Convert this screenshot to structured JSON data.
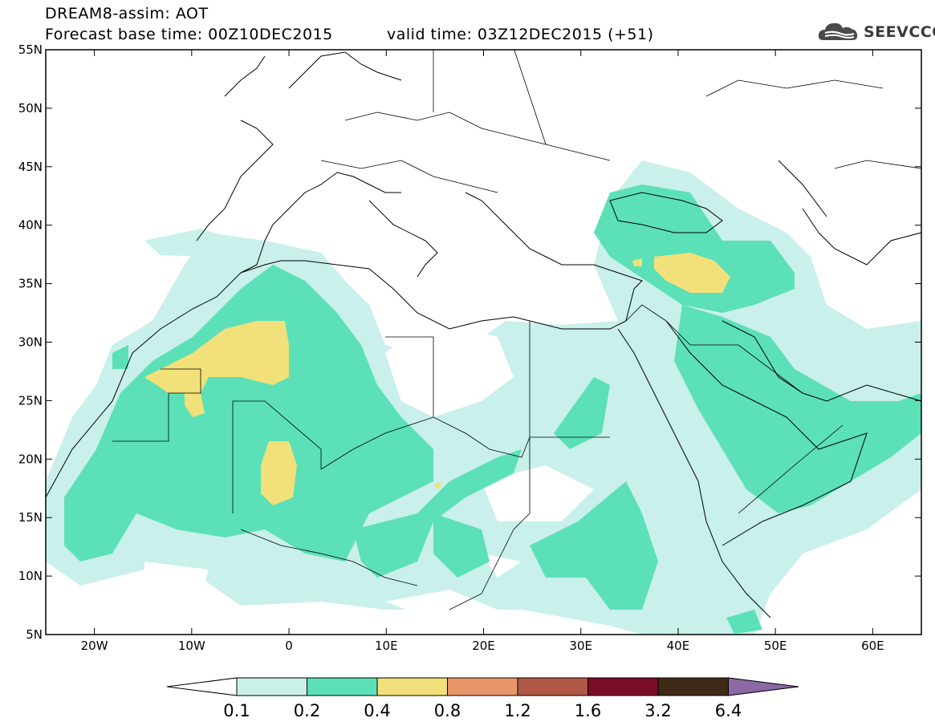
{
  "header": {
    "line1": "DREAM8-assim: AOT",
    "line2": "Forecast base time: 00Z10DEC2015",
    "valid": "valid time: 03Z12DEC2015 (+51)"
  },
  "logo": {
    "text": "SEEVCCC",
    "icon": "cloud-icon"
  },
  "map": {
    "lon_range": [
      -25,
      65
    ],
    "lat_range": [
      5,
      55
    ],
    "lat_ticks": [
      "5N",
      "10N",
      "15N",
      "20N",
      "25N",
      "30N",
      "35N",
      "40N",
      "45N",
      "50N",
      "55N"
    ],
    "lon_ticks": [
      "20W",
      "10W",
      "0",
      "10E",
      "20E",
      "30E",
      "40E",
      "50E",
      "60E"
    ]
  },
  "colorbar": {
    "labels": [
      "0.1",
      "0.2",
      "0.4",
      "0.8",
      "1.2",
      "1.6",
      "3.2",
      "6.4"
    ],
    "colors": [
      "#ffffff",
      "#c9f0ea",
      "#5ce0b8",
      "#f2e17a",
      "#e8956a",
      "#b05845",
      "#7a0d28",
      "#3f2a17",
      "#8a69a6"
    ]
  }
}
